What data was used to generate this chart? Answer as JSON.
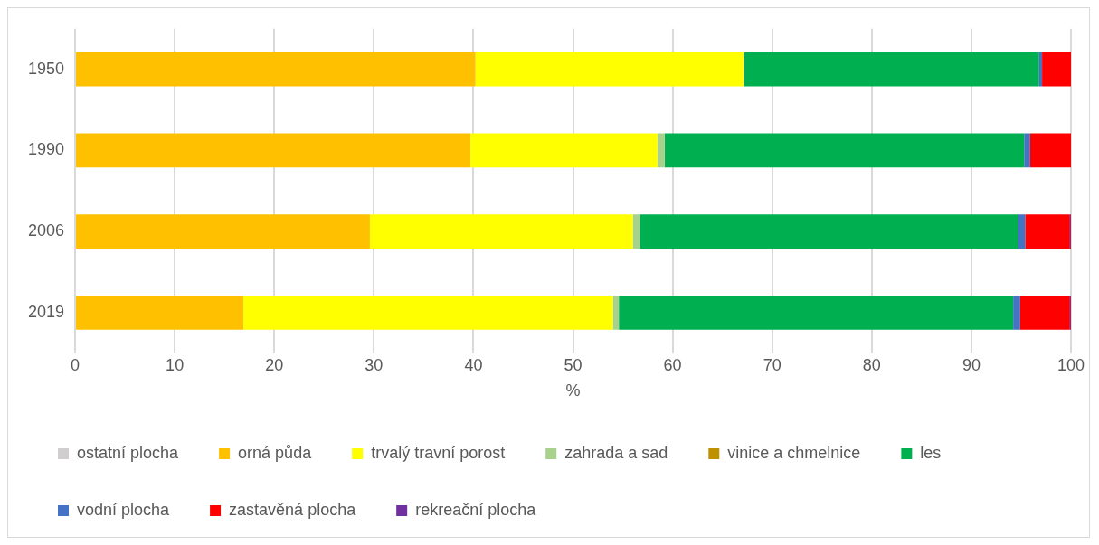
{
  "chart_data": {
    "type": "bar",
    "orientation": "horizontal",
    "stacked": true,
    "categories": [
      "1950",
      "1990",
      "2006",
      "2019"
    ],
    "xlabel": "%",
    "xlim": [
      0,
      100
    ],
    "xticks": [
      0,
      10,
      20,
      30,
      40,
      50,
      60,
      70,
      80,
      90,
      100
    ],
    "grid": "x",
    "legend": "bottom",
    "series": [
      {
        "name": "ostatní plocha",
        "color": "#d0cece",
        "values": [
          null,
          null,
          null,
          null
        ]
      },
      {
        "name": "orná půda",
        "color": "#ffc000",
        "values": [
          40.2,
          39.7,
          29.6,
          16.9
        ]
      },
      {
        "name": "trvalý travní porost",
        "color": "#ffff00",
        "values": [
          26.9,
          18.8,
          26.4,
          37.1
        ]
      },
      {
        "name": "zahrada a sad",
        "color": "#a9d18e",
        "values": [
          0.1,
          0.7,
          0.7,
          0.6
        ]
      },
      {
        "name": "vinice a chmelnice",
        "color": "#bf9000",
        "values": [
          0,
          0,
          0,
          0
        ]
      },
      {
        "name": "les",
        "color": "#00b050",
        "values": [
          29.6,
          36.1,
          38.0,
          39.6
        ]
      },
      {
        "name": "vodní plocha",
        "color": "#4472c4",
        "values": [
          0.3,
          0.6,
          0.7,
          0.7
        ]
      },
      {
        "name": "zastavěná plocha",
        "color": "#ff0000",
        "values": [
          2.9,
          4.1,
          4.5,
          5.0
        ]
      },
      {
        "name": "rekreační plocha",
        "color": "#7030a0",
        "values": [
          0,
          0,
          0.1,
          0.1
        ]
      }
    ]
  }
}
